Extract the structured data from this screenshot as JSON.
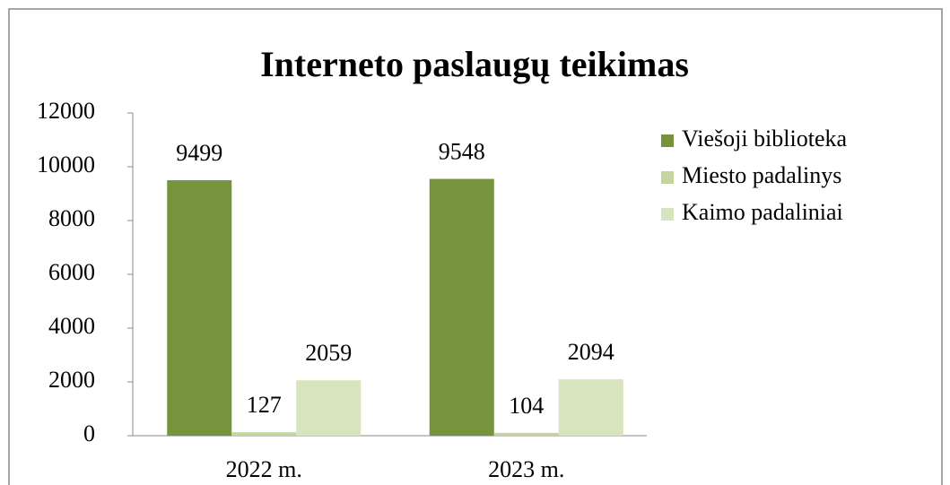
{
  "chart_data": {
    "type": "bar",
    "title": "Interneto paslaugų teikimas",
    "categories": [
      "2022 m.",
      "2023 m."
    ],
    "series": [
      {
        "name": "Viešoji biblioteka",
        "color": "#77933c",
        "values": [
          9499,
          9548
        ]
      },
      {
        "name": "Miesto padalinys",
        "color": "#c3d69b",
        "values": [
          127,
          104
        ]
      },
      {
        "name": "Kaimo padaliniai",
        "color": "#d7e4bd",
        "values": [
          2059,
          2094
        ]
      }
    ],
    "ylim": [
      0,
      12000
    ],
    "yticks": [
      0,
      2000,
      4000,
      6000,
      8000,
      10000,
      12000
    ],
    "grid": false,
    "legend": "right"
  }
}
